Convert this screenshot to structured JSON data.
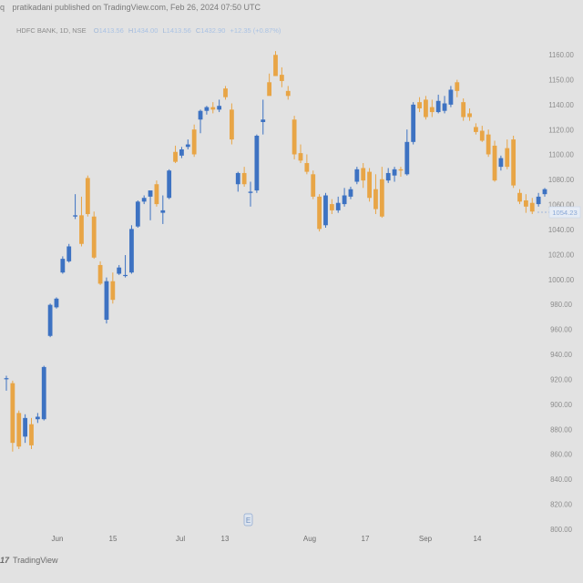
{
  "header": {
    "icon": "q",
    "publisher_line": "pratikadani published on TradingView.com, Feb 26, 2024 07:50 UTC"
  },
  "legend": {
    "symbol": "HDFC BANK, 1D, NSE",
    "open_label": "O",
    "open_value": "1413.56",
    "high_label": "H",
    "high_value": "1434.00",
    "low_label": "L",
    "low_value": "1413.56",
    "close_label": "C",
    "close_value": "1432.90",
    "change": "+12.35 (+0.87%)"
  },
  "watermark": {
    "logo": "17",
    "text": "TradingView"
  },
  "colors": {
    "up": "#3d72c2",
    "down": "#e8a546",
    "background": "#e2e2e2",
    "axis_text": "#8c8c8c",
    "price_label_bg": "#e6ecf5",
    "price_label_text": "#8aa8d6"
  },
  "icons": {
    "event_marker": "earnings-marker-icon"
  },
  "event_marker_label": "E",
  "chart_data": {
    "type": "candlestick",
    "y_axis_ticks": [
      "1160.00",
      "1150.00",
      "1140.00",
      "1120.00",
      "1100.00",
      "1080.00",
      "1060.00",
      "1040.00",
      "1020.00",
      "1000.00",
      "980.00",
      "960.00",
      "940.00",
      "920.00",
      "900.00",
      "880.00",
      "860.00",
      "840.00",
      "820.00",
      "800.00"
    ],
    "x_axis_ticks": [
      "Jun",
      "15",
      "Jul",
      "13",
      "Aug",
      "17",
      "Sep",
      "14"
    ],
    "current_price_label": "1054.23",
    "ylim": [
      798,
      1163
    ],
    "candles": [
      {
        "o": 902,
        "h": 904,
        "l": 892,
        "c": 902
      },
      {
        "o": 898,
        "h": 900,
        "l": 843,
        "c": 850
      },
      {
        "o": 874,
        "h": 876,
        "l": 845,
        "c": 847
      },
      {
        "o": 855,
        "h": 873,
        "l": 850,
        "c": 870
      },
      {
        "o": 865,
        "h": 870,
        "l": 845,
        "c": 848
      },
      {
        "o": 869,
        "h": 874,
        "l": 866,
        "c": 871
      },
      {
        "o": 869,
        "h": 912,
        "l": 868,
        "c": 911
      },
      {
        "o": 936,
        "h": 962,
        "l": 935,
        "c": 961
      },
      {
        "o": 959,
        "h": 967,
        "l": 958,
        "c": 966
      },
      {
        "o": 987,
        "h": 1000,
        "l": 986,
        "c": 998
      },
      {
        "o": 996,
        "h": 1010,
        "l": 995,
        "c": 1008
      },
      {
        "o": 1032,
        "h": 1050,
        "l": 1030,
        "c": 1033
      },
      {
        "o": 1033,
        "h": 1048,
        "l": 1008,
        "c": 1010
      },
      {
        "o": 1063,
        "h": 1065,
        "l": 1032,
        "c": 1034
      },
      {
        "o": 1032,
        "h": 1036,
        "l": 998,
        "c": 999
      },
      {
        "o": 993,
        "h": 996,
        "l": 977,
        "c": 978
      },
      {
        "o": 949,
        "h": 983,
        "l": 946,
        "c": 980
      },
      {
        "o": 980,
        "h": 987,
        "l": 962,
        "c": 965
      },
      {
        "o": 986,
        "h": 993,
        "l": 985,
        "c": 991
      },
      {
        "o": 985,
        "h": 1001,
        "l": 983,
        "c": 985
      },
      {
        "o": 987,
        "h": 1025,
        "l": 986,
        "c": 1022
      },
      {
        "o": 1024,
        "h": 1045,
        "l": 1023,
        "c": 1044
      },
      {
        "o": 1044,
        "h": 1049,
        "l": 1042,
        "c": 1047
      },
      {
        "o": 1048,
        "h": 1050,
        "l": 1029,
        "c": 1053
      },
      {
        "o": 1058,
        "h": 1061,
        "l": 1040,
        "c": 1042
      },
      {
        "o": 1035,
        "h": 1049,
        "l": 1026,
        "c": 1037
      },
      {
        "o": 1047,
        "h": 1070,
        "l": 1046,
        "c": 1069
      },
      {
        "o": 1084,
        "h": 1089,
        "l": 1075,
        "c": 1076
      },
      {
        "o": 1081,
        "h": 1088,
        "l": 1079,
        "c": 1086
      },
      {
        "o": 1088,
        "h": 1094,
        "l": 1086,
        "c": 1090
      },
      {
        "o": 1102,
        "h": 1106,
        "l": 1080,
        "c": 1082
      },
      {
        "o": 1110,
        "h": 1118,
        "l": 1099,
        "c": 1117
      },
      {
        "o": 1117,
        "h": 1121,
        "l": 1114,
        "c": 1120
      },
      {
        "o": 1120,
        "h": 1124,
        "l": 1115,
        "c": 1118
      },
      {
        "o": 1118,
        "h": 1126,
        "l": 1116,
        "c": 1121
      },
      {
        "o": 1135,
        "h": 1137,
        "l": 1126,
        "c": 1128
      },
      {
        "o": 1118,
        "h": 1123,
        "l": 1090,
        "c": 1094
      },
      {
        "o": 1058,
        "h": 1068,
        "l": 1052,
        "c": 1067
      },
      {
        "o": 1067,
        "h": 1072,
        "l": 1056,
        "c": 1058
      },
      {
        "o": 1051,
        "h": 1060,
        "l": 1040,
        "c": 1052
      },
      {
        "o": 1053,
        "h": 1098,
        "l": 1051,
        "c": 1097
      },
      {
        "o": 1108,
        "h": 1126,
        "l": 1098,
        "c": 1110
      },
      {
        "o": 1140,
        "h": 1147,
        "l": 1130,
        "c": 1129
      },
      {
        "o": 1162,
        "h": 1165,
        "l": 1145,
        "c": 1145
      },
      {
        "o": 1146,
        "h": 1152,
        "l": 1136,
        "c": 1141
      },
      {
        "o": 1133,
        "h": 1137,
        "l": 1126,
        "c": 1129
      },
      {
        "o": 1110,
        "h": 1113,
        "l": 1078,
        "c": 1082
      },
      {
        "o": 1083,
        "h": 1090,
        "l": 1075,
        "c": 1077
      },
      {
        "o": 1075,
        "h": 1082,
        "l": 1066,
        "c": 1068
      },
      {
        "o": 1066,
        "h": 1069,
        "l": 1046,
        "c": 1048
      },
      {
        "o": 1048,
        "h": 1050,
        "l": 1020,
        "c": 1022
      },
      {
        "o": 1025,
        "h": 1051,
        "l": 1023,
        "c": 1049
      },
      {
        "o": 1042,
        "h": 1046,
        "l": 1034,
        "c": 1037
      },
      {
        "o": 1037,
        "h": 1048,
        "l": 1035,
        "c": 1043
      },
      {
        "o": 1042,
        "h": 1055,
        "l": 1040,
        "c": 1049
      },
      {
        "o": 1048,
        "h": 1056,
        "l": 1046,
        "c": 1054
      },
      {
        "o": 1060,
        "h": 1072,
        "l": 1058,
        "c": 1070
      },
      {
        "o": 1071,
        "h": 1075,
        "l": 1055,
        "c": 1061
      },
      {
        "o": 1068,
        "h": 1071,
        "l": 1044,
        "c": 1047
      },
      {
        "o": 1054,
        "h": 1066,
        "l": 1034,
        "c": 1038
      },
      {
        "o": 1062,
        "h": 1072,
        "l": 1031,
        "c": 1032
      },
      {
        "o": 1061,
        "h": 1071,
        "l": 1059,
        "c": 1067
      },
      {
        "o": 1065,
        "h": 1072,
        "l": 1060,
        "c": 1070
      },
      {
        "o": 1070,
        "h": 1072,
        "l": 1064,
        "c": 1069
      },
      {
        "o": 1066,
        "h": 1102,
        "l": 1065,
        "c": 1092
      },
      {
        "o": 1092,
        "h": 1124,
        "l": 1090,
        "c": 1122
      },
      {
        "o": 1124,
        "h": 1128,
        "l": 1116,
        "c": 1119
      },
      {
        "o": 1126,
        "h": 1129,
        "l": 1110,
        "c": 1112
      },
      {
        "o": 1120,
        "h": 1126,
        "l": 1112,
        "c": 1116
      },
      {
        "o": 1116,
        "h": 1130,
        "l": 1115,
        "c": 1125
      },
      {
        "o": 1117,
        "h": 1129,
        "l": 1115,
        "c": 1123
      },
      {
        "o": 1122,
        "h": 1137,
        "l": 1120,
        "c": 1134
      },
      {
        "o": 1140,
        "h": 1142,
        "l": 1128,
        "c": 1133
      },
      {
        "o": 1124,
        "h": 1127,
        "l": 1109,
        "c": 1112
      },
      {
        "o": 1115,
        "h": 1119,
        "l": 1109,
        "c": 1112
      },
      {
        "o": 1104,
        "h": 1107,
        "l": 1098,
        "c": 1100
      },
      {
        "o": 1101,
        "h": 1105,
        "l": 1092,
        "c": 1093
      },
      {
        "o": 1098,
        "h": 1102,
        "l": 1080,
        "c": 1082
      },
      {
        "o": 1089,
        "h": 1093,
        "l": 1060,
        "c": 1061
      },
      {
        "o": 1072,
        "h": 1081,
        "l": 1069,
        "c": 1079
      },
      {
        "o": 1087,
        "h": 1094,
        "l": 1070,
        "c": 1072
      },
      {
        "o": 1094,
        "h": 1097,
        "l": 1055,
        "c": 1057
      },
      {
        "o": 1051,
        "h": 1054,
        "l": 1042,
        "c": 1044
      },
      {
        "o": 1045,
        "h": 1050,
        "l": 1035,
        "c": 1040
      },
      {
        "o": 1043,
        "h": 1047,
        "l": 1034,
        "c": 1036
      },
      {
        "o": 1042,
        "h": 1051,
        "l": 1040,
        "c": 1048
      },
      {
        "o": 1050,
        "h": 1055,
        "l": 1048,
        "c": 1054
      }
    ]
  }
}
